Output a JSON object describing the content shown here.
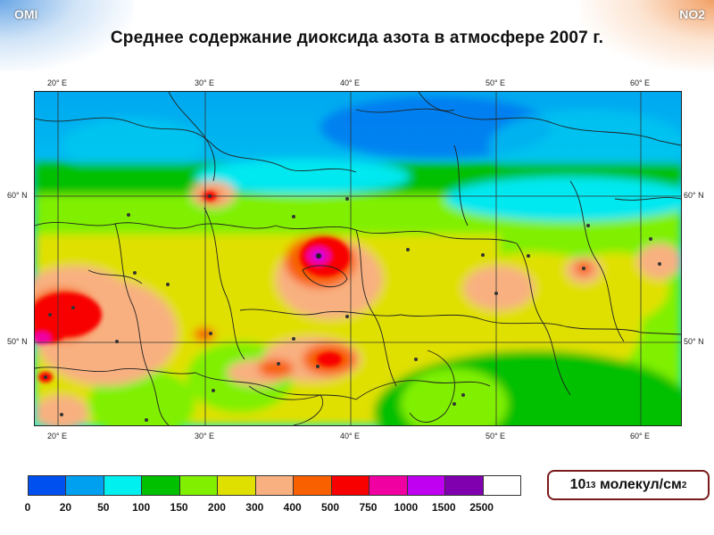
{
  "header": {
    "left_label": "OMI",
    "right_label": "NO2",
    "title": "Среднее содержание диоксида азота в атмосфере 2007 г."
  },
  "map": {
    "lon_labels_top": [
      "20° E",
      "30° E",
      "40° E",
      "50° E",
      "60° E"
    ],
    "lon_labels_bottom": [
      "20° E",
      "30° E",
      "40° E",
      "50° E",
      "60° E"
    ],
    "lat_labels_left": [
      "60° N",
      "50° N"
    ],
    "lat_labels_right": [
      "60° N",
      "50° N"
    ]
  },
  "legend": {
    "colors": [
      "#0050f0",
      "#00a0f0",
      "#00f0f0",
      "#00c000",
      "#80f000",
      "#e0e000",
      "#f8b080",
      "#f86000",
      "#f80000",
      "#f000a0",
      "#c000f0",
      "#8000b0",
      "#ffffff"
    ],
    "tick_labels": [
      "0",
      "20",
      "50",
      "100",
      "150",
      "200",
      "300",
      "400",
      "500",
      "750",
      "1000",
      "1500",
      "2500"
    ],
    "units_base": "10",
    "units_exp": "13",
    "units_text": "молекул/см",
    "units_sq": "2"
  }
}
